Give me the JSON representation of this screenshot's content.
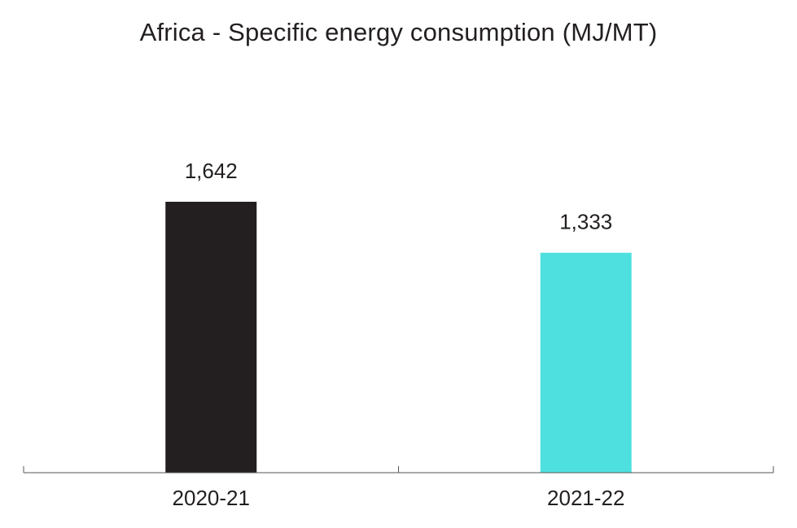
{
  "chart_data": {
    "type": "bar",
    "title": "Africa - Specific energy consumption (MJ/MT)",
    "categories": [
      "2020-21",
      "2021-22"
    ],
    "values": [
      1642,
      1333
    ],
    "value_labels": [
      "1,642",
      "1,333"
    ],
    "bar_colors": [
      "#231f20",
      "#4ee0df"
    ],
    "ylim": [
      0,
      1642
    ],
    "grid": false,
    "xlabel": "",
    "ylabel": ""
  }
}
